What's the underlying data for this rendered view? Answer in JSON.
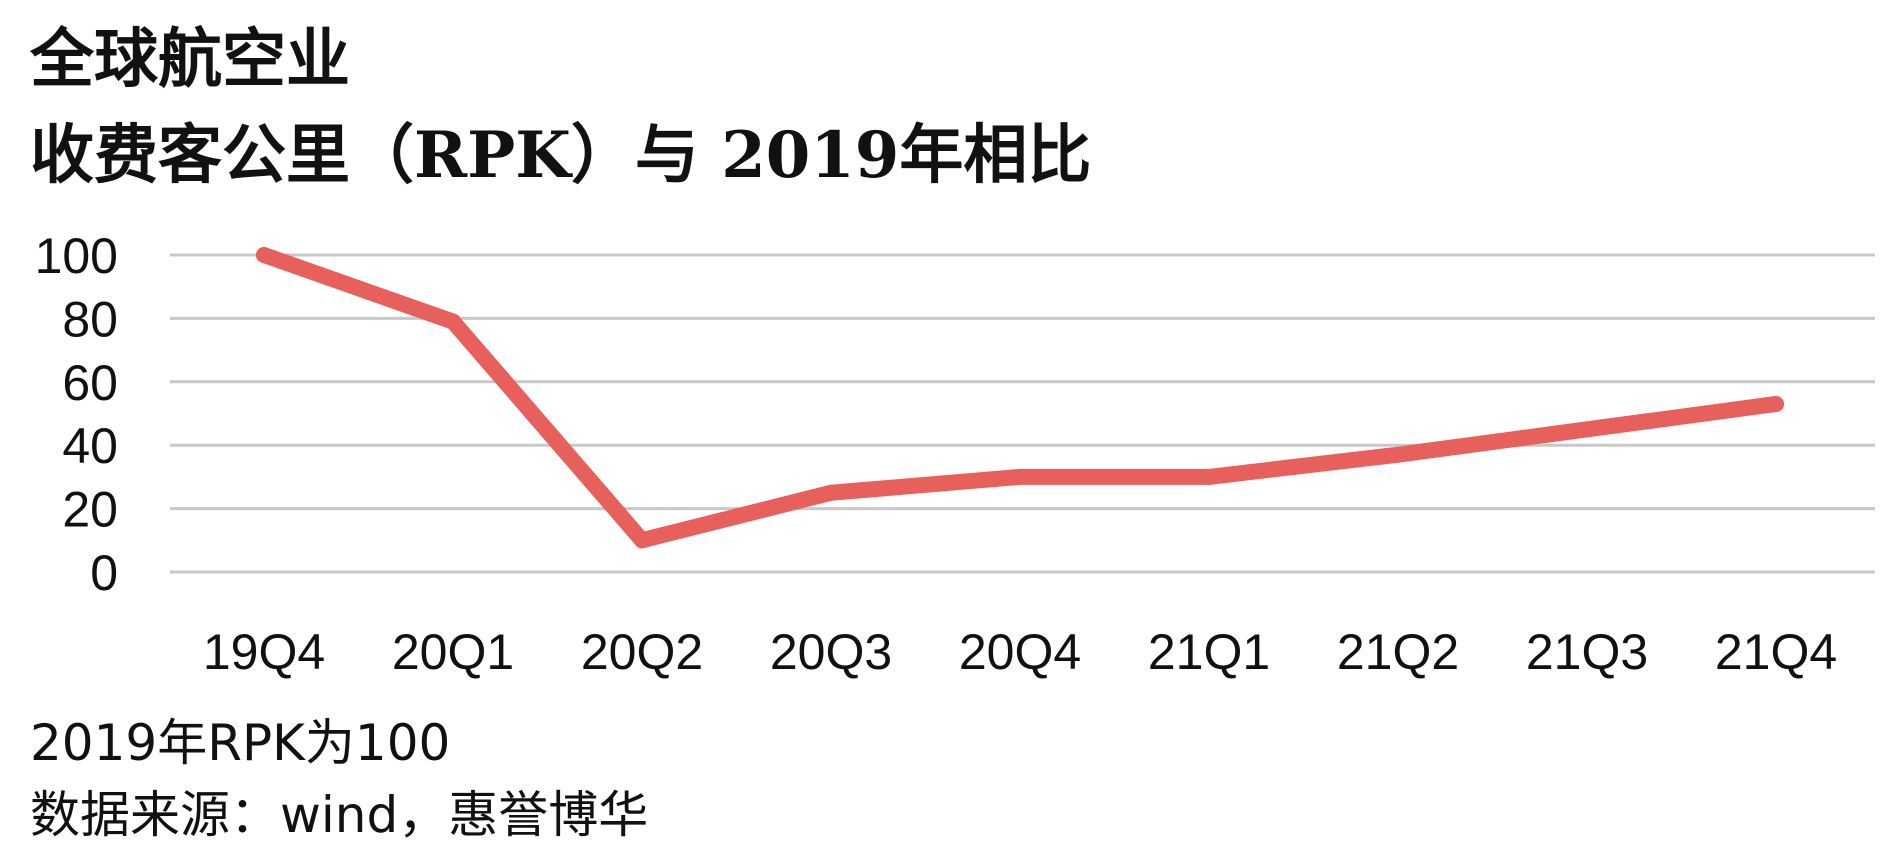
{
  "chart_data": {
    "type": "line",
    "title": "全球航空业",
    "subtitle": "收费客公里（RPK）与 2019年相比",
    "categories": [
      "19Q4",
      "20Q1",
      "20Q2",
      "20Q3",
      "20Q4",
      "21Q1",
      "21Q2",
      "21Q3",
      "21Q4"
    ],
    "series": [
      {
        "values": [
          100,
          79,
          10,
          25,
          30,
          30,
          37,
          45,
          53
        ]
      }
    ],
    "yticks": [
      "0",
      "20",
      "40",
      "60",
      "80",
      "100"
    ],
    "ylim": [
      0,
      100
    ],
    "grid": true,
    "line_color": "#e8605c",
    "grid_color": "#c8c8c8"
  },
  "notes": {
    "base": "2019年RPK为100",
    "source": "数据来源：wind，惠誉博华"
  }
}
